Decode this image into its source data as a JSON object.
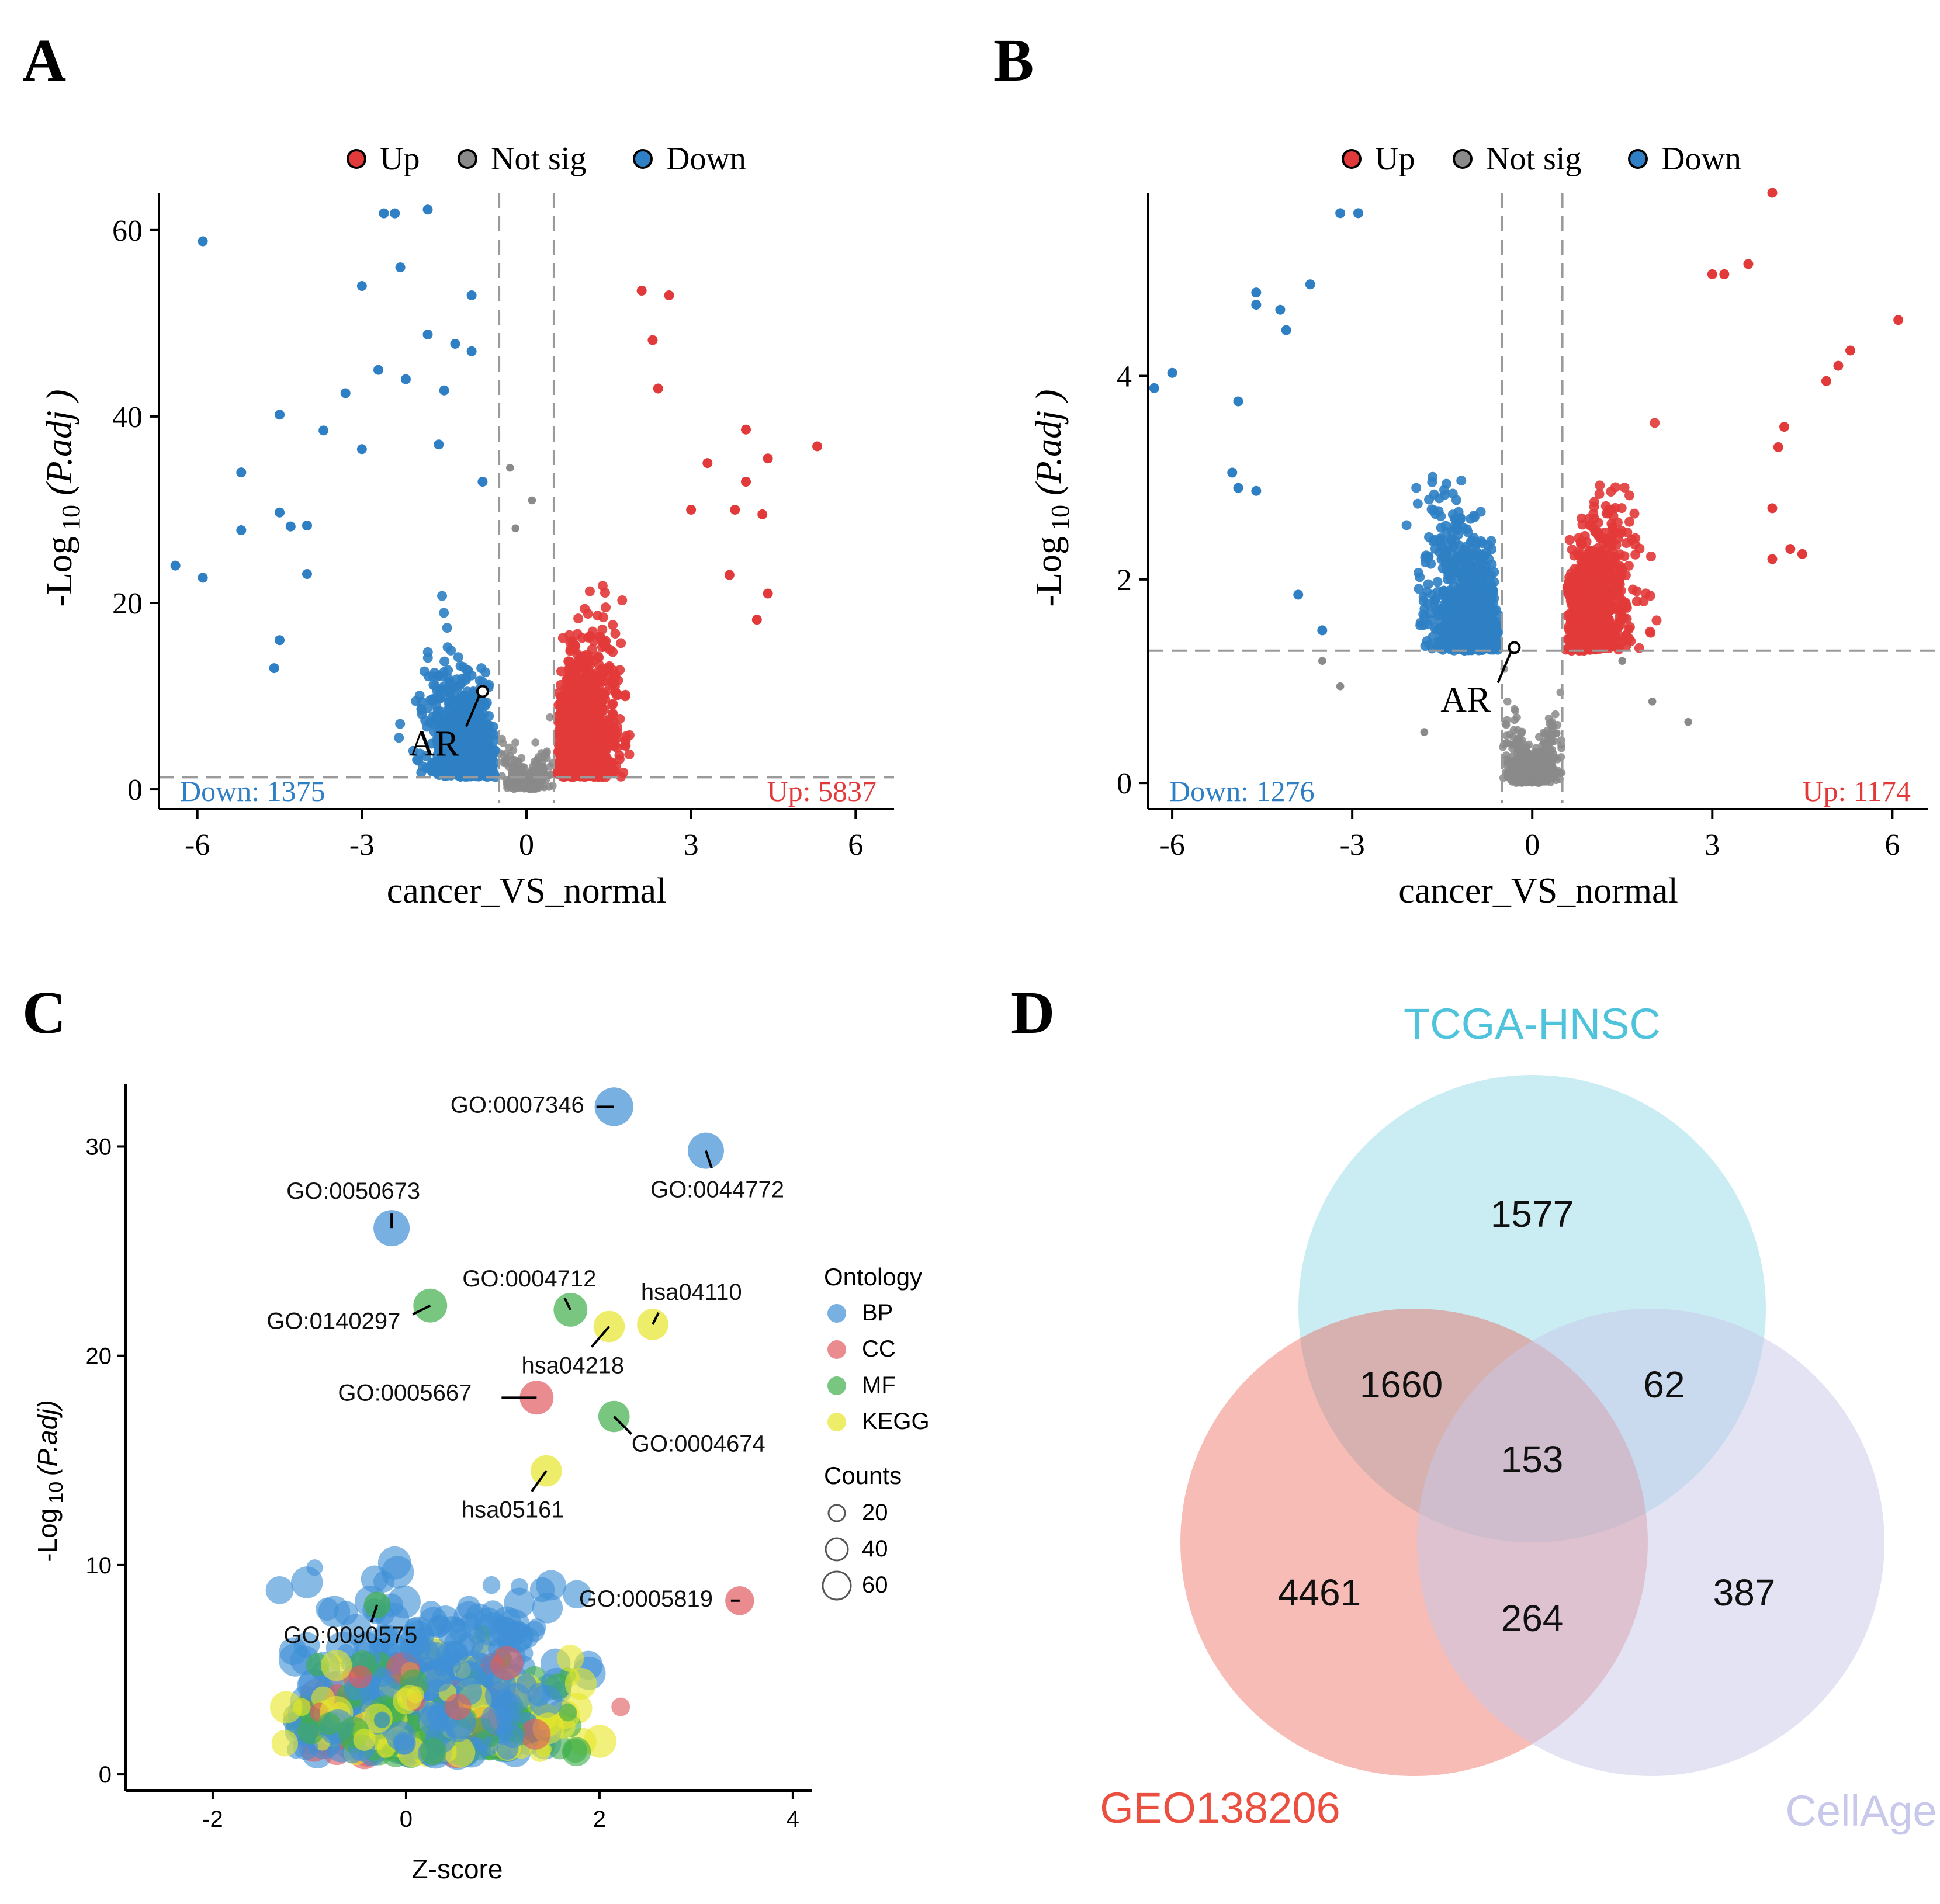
{
  "panels": {
    "A": "A",
    "B": "B",
    "C": "C",
    "D": "D"
  },
  "colors": {
    "up": "#e23a3a",
    "down": "#2f7fc4",
    "not_sig": "#8a8a8a",
    "bp": "#3f8fd6",
    "cc": "#e05a60",
    "mf": "#3fae4a",
    "kegg": "#e6e62a",
    "tcga": "#4fc3dc",
    "geo": "#ea4f3f",
    "cellage": "#c8c8ea"
  },
  "chart_data": [
    {
      "id": "A",
      "type": "scatter",
      "subtype": "volcano",
      "legend": [
        "Up",
        "Not sig",
        "Down"
      ],
      "xlabel": "cancer_VS_normal",
      "ylabel_main": "-Log",
      "ylabel_sub": "10",
      "ylabel_paren": "(P.adj )",
      "xlim": [
        -6.7,
        6.7
      ],
      "ylim": [
        -1.5,
        64
      ],
      "xticks": [
        -6,
        -3,
        0,
        3,
        6
      ],
      "yticks": [
        0,
        20,
        40,
        60
      ],
      "x_thresholds": [
        -0.5,
        0.5
      ],
      "y_threshold": 1.3,
      "down_label": "Down: 1375",
      "up_label": "Up: 5837",
      "down_count": 1375,
      "up_count": 5837,
      "annotation": {
        "label": "AR",
        "x": -0.8,
        "y": 10.5
      },
      "highlight_points": {
        "down": [
          [
            -5.9,
            58.8
          ],
          [
            -6.4,
            24
          ],
          [
            -5.9,
            22.7
          ],
          [
            -5.2,
            27.8
          ],
          [
            -5.2,
            34
          ],
          [
            -4.5,
            40.2
          ],
          [
            -4.5,
            29.7
          ],
          [
            -4.3,
            28.2
          ],
          [
            -4.0,
            28.3
          ],
          [
            -4.0,
            23.1
          ],
          [
            -4.5,
            16
          ],
          [
            -4.6,
            13
          ],
          [
            -3.7,
            38.5
          ],
          [
            -3.3,
            42.5
          ],
          [
            -3.0,
            36.5
          ],
          [
            -3.0,
            54
          ],
          [
            -2.7,
            45
          ],
          [
            -2.6,
            61.8
          ],
          [
            -2.4,
            61.8
          ],
          [
            -2.3,
            56
          ],
          [
            -2.2,
            44
          ],
          [
            -1.8,
            62.2
          ],
          [
            -1.8,
            48.8
          ],
          [
            -1.5,
            42.8
          ],
          [
            -1.6,
            37
          ],
          [
            -1.0,
            53
          ],
          [
            -0.8,
            33
          ],
          [
            -1.3,
            47.8
          ],
          [
            -1.0,
            47
          ]
        ],
        "up": [
          [
            2.1,
            53.5
          ],
          [
            2.6,
            53
          ],
          [
            2.3,
            48.2
          ],
          [
            2.4,
            43
          ],
          [
            3.3,
            35
          ],
          [
            3.0,
            30
          ],
          [
            4.0,
            38.6
          ],
          [
            4.4,
            35.5
          ],
          [
            5.3,
            36.8
          ],
          [
            4.0,
            33
          ],
          [
            3.8,
            30
          ],
          [
            4.3,
            29.5
          ],
          [
            4.4,
            21
          ],
          [
            4.2,
            18.2
          ],
          [
            3.7,
            23
          ]
        ],
        "ns": [
          [
            -0.3,
            34.5
          ],
          [
            -0.2,
            28
          ],
          [
            0.1,
            31
          ]
        ]
      }
    },
    {
      "id": "B",
      "type": "scatter",
      "subtype": "volcano",
      "legend": [
        "Up",
        "Not sig",
        "Down"
      ],
      "xlabel": "cancer_VS_normal",
      "ylabel_main": "-Log",
      "ylabel_sub": "10",
      "ylabel_paren": "(P.adj )",
      "xlim": [
        -6.4,
        6.6
      ],
      "ylim": [
        -0.2,
        5.8
      ],
      "xticks": [
        -6,
        -3,
        0,
        3,
        6
      ],
      "yticks": [
        0,
        2,
        4
      ],
      "x_thresholds": [
        -0.5,
        0.5
      ],
      "y_threshold": 1.3,
      "down_label": "Down: 1276",
      "up_label": "Up: 1174",
      "down_count": 1276,
      "up_count": 1174,
      "annotation": {
        "label": "AR",
        "x": -0.3,
        "y": 1.33
      },
      "highlight_points": {
        "down": [
          [
            -6.3,
            3.88
          ],
          [
            -6.0,
            4.03
          ],
          [
            -5.0,
            3.05
          ],
          [
            -4.9,
            2.9
          ],
          [
            -4.6,
            2.87
          ],
          [
            -4.9,
            3.75
          ],
          [
            -4.6,
            4.7
          ],
          [
            -4.6,
            4.82
          ],
          [
            -4.2,
            4.65
          ],
          [
            -4.1,
            4.45
          ],
          [
            -3.7,
            4.9
          ],
          [
            -3.2,
            5.6
          ],
          [
            -2.9,
            5.6
          ],
          [
            -3.9,
            1.85
          ],
          [
            -3.5,
            1.5
          ]
        ],
        "up": [
          [
            4.0,
            5.8
          ],
          [
            6.1,
            4.55
          ],
          [
            5.3,
            4.25
          ],
          [
            5.1,
            4.1
          ],
          [
            4.9,
            3.95
          ],
          [
            4.2,
            3.5
          ],
          [
            4.1,
            3.3
          ],
          [
            3.6,
            5.1
          ],
          [
            4.0,
            2.7
          ],
          [
            4.0,
            2.2
          ],
          [
            4.3,
            2.3
          ],
          [
            4.5,
            2.25
          ],
          [
            3.0,
            5.0
          ],
          [
            3.2,
            5.0
          ]
        ],
        "ns": [
          [
            -3.5,
            1.2
          ],
          [
            -3.2,
            0.95
          ],
          [
            -1.8,
            0.5
          ],
          [
            2.0,
            0.8
          ],
          [
            2.6,
            0.6
          ],
          [
            1.5,
            1.2
          ]
        ]
      }
    },
    {
      "id": "C",
      "type": "scatter",
      "subtype": "bubble",
      "xlabel": "Z-score",
      "ylabel_main": "-Log",
      "ylabel_sub": "10",
      "ylabel_paren": "(P.adj)",
      "xlim": [
        -2.9,
        4.2
      ],
      "ylim": [
        -0.5,
        33
      ],
      "xticks": [
        -2,
        0,
        2,
        4
      ],
      "yticks": [
        0,
        10,
        20,
        30
      ],
      "legend_ontology_title": "Ontology",
      "legend_ontology": [
        "BP",
        "CC",
        "MF",
        "KEGG"
      ],
      "legend_counts_title": "Counts",
      "legend_counts": [
        "20",
        "40",
        "60"
      ],
      "labeled_points": [
        {
          "label": "GO:0007346",
          "x": 2.15,
          "y": 31.9,
          "cat": "BP",
          "count": 55
        },
        {
          "label": "GO:0044772",
          "x": 3.1,
          "y": 29.8,
          "cat": "BP",
          "count": 50
        },
        {
          "label": "GO:0050673",
          "x": -0.15,
          "y": 26.1,
          "cat": "BP",
          "count": 50
        },
        {
          "label": "GO:0004712",
          "x": 1.7,
          "y": 22.2,
          "cat": "MF",
          "count": 45
        },
        {
          "label": "hsa04110",
          "x": 2.55,
          "y": 21.5,
          "cat": "KEGG",
          "count": 40
        },
        {
          "label": "GO:0140297",
          "x": 0.25,
          "y": 22.4,
          "cat": "MF",
          "count": 45
        },
        {
          "label": "hsa04218",
          "x": 2.1,
          "y": 21.4,
          "cat": "KEGG",
          "count": 40
        },
        {
          "label": "GO:0005667",
          "x": 1.35,
          "y": 18.0,
          "cat": "CC",
          "count": 45
        },
        {
          "label": "GO:0004674",
          "x": 2.15,
          "y": 17.1,
          "cat": "MF",
          "count": 40
        },
        {
          "label": "hsa05161",
          "x": 1.45,
          "y": 14.5,
          "cat": "KEGG",
          "count": 40
        },
        {
          "label": "GO:0005819",
          "x": 3.45,
          "y": 8.3,
          "cat": "CC",
          "count": 35
        },
        {
          "label": "GO:0090575",
          "x": -0.3,
          "y": 8.1,
          "cat": "MF",
          "count": 30
        }
      ]
    },
    {
      "id": "D",
      "type": "venn",
      "sets": [
        "TCGA-HNSC",
        "GEO138206",
        "CellAge"
      ],
      "regions": {
        "tcga_only": 1577,
        "tcga_geo": 1660,
        "tcga_cellage": 62,
        "all_three": 153,
        "geo_only": 4461,
        "geo_cellage": 264,
        "cellage_only": 387
      }
    }
  ]
}
